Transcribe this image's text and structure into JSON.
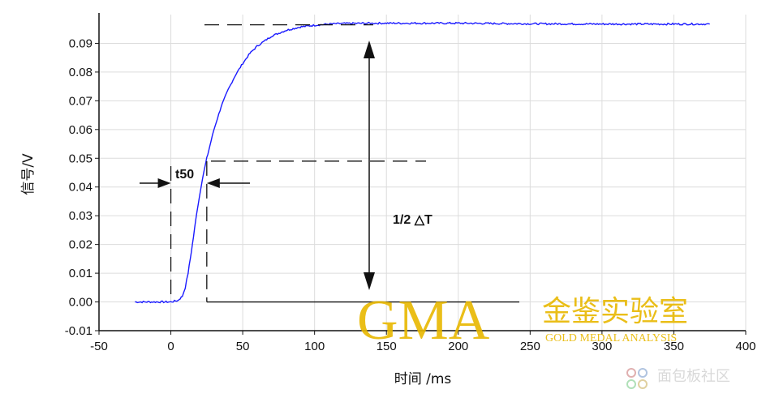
{
  "chart_data": {
    "type": "line",
    "xlabel": "时间 /ms",
    "ylabel": "信号/V",
    "xlim": [
      -50,
      400
    ],
    "ylim": [
      -0.01,
      0.1
    ],
    "x_ticks": [
      -50,
      0,
      50,
      100,
      150,
      200,
      250,
      300,
      350,
      400
    ],
    "y_ticks": [
      -0.01,
      0.0,
      0.01,
      0.02,
      0.03,
      0.04,
      0.05,
      0.06,
      0.07,
      0.08,
      0.09
    ],
    "x_tick_labels": [
      "-50",
      "0",
      "50",
      "100",
      "150",
      "200",
      "250",
      "300",
      "350",
      "400"
    ],
    "y_tick_labels": [
      "-0.01",
      "0.00",
      "0.01",
      "0.02",
      "0.03",
      "0.04",
      "0.05",
      "0.06",
      "0.07",
      "0.08",
      "0.09"
    ],
    "grid": true,
    "series": [
      {
        "color": "#1a1aff",
        "x": [
          -25,
          -15,
          -5,
          0,
          5,
          8,
          10,
          12,
          15,
          18,
          20,
          22,
          25,
          28,
          30,
          35,
          40,
          45,
          50,
          55,
          60,
          70,
          80,
          90,
          100,
          110,
          120,
          140,
          160,
          180,
          200,
          250,
          300,
          350,
          375
        ],
        "y": [
          0.0,
          0.0,
          0.0,
          0.0,
          0.0005,
          0.002,
          0.005,
          0.01,
          0.02,
          0.031,
          0.037,
          0.043,
          0.05,
          0.056,
          0.06,
          0.068,
          0.074,
          0.079,
          0.083,
          0.0865,
          0.089,
          0.0925,
          0.0945,
          0.0957,
          0.0963,
          0.0967,
          0.0969,
          0.097,
          0.097,
          0.097,
          0.097,
          0.0968,
          0.0967,
          0.0967,
          0.0967
        ]
      }
    ],
    "annotations": {
      "t50_label": "t50",
      "delta_label": "1/2 △T",
      "t50_x": [
        0,
        25
      ],
      "half_level": 0.049,
      "top_level": 0.097,
      "base_level": 0.0
    }
  },
  "watermark": {
    "brand": "GMA",
    "cn": "金鉴实验室",
    "sub": "GOLD MEDAL ANALYSIS",
    "site": "面包板社区"
  }
}
